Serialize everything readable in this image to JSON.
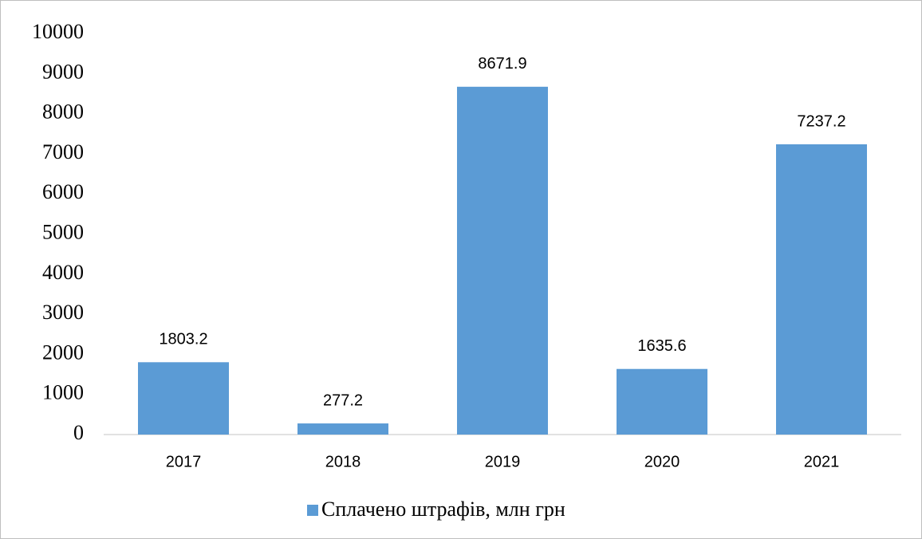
{
  "chart_data": {
    "type": "bar",
    "categories": [
      "2017",
      "2018",
      "2019",
      "2020",
      "2021"
    ],
    "series": [
      {
        "name": "Сплачено штрафів, млн грн",
        "color": "#5b9bd5",
        "values": [
          1803.2,
          277.2,
          8671.9,
          1635.6,
          7237.2
        ]
      }
    ],
    "ylim": [
      0,
      10000
    ],
    "yticks": [
      0,
      1000,
      2000,
      3000,
      4000,
      5000,
      6000,
      7000,
      8000,
      9000,
      10000
    ],
    "grid": false,
    "legend": "bottom"
  }
}
